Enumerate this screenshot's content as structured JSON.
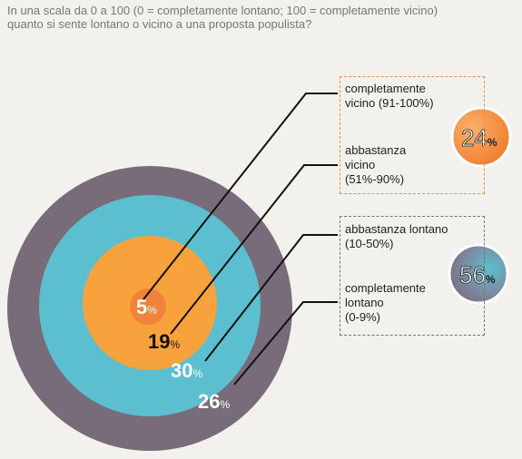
{
  "question": {
    "line1": "In una scala da 0 a 100 (0 = completamente lontano; 100 = completamente vicino)",
    "line2": "quanto si sente lontano o vicino a una proposta populista?"
  },
  "labels": {
    "completamente_vicino": [
      "completamente",
      "vicino (91-100%)"
    ],
    "abbastanza_vicino": [
      "abbastanza",
      "vicino",
      "(51%-90%)"
    ],
    "abbastanza_lontano": [
      "abbastanza lontano",
      "(10-50%)"
    ],
    "completamente_lontano": [
      "completamente",
      "lontano",
      "(0-9%)"
    ]
  },
  "chart_data": {
    "type": "pie",
    "title": "",
    "unit": "%",
    "categories": [
      "completamente vicino (91-100%)",
      "abbastanza vicino (51%-90%)",
      "abbastanza lontano (10-50%)",
      "completamente lontano (0-9%)"
    ],
    "values": [
      5,
      19,
      30,
      26
    ],
    "colors": [
      "#f0823a",
      "#f7a23c",
      "#5bbfcf",
      "#786b7a"
    ],
    "groups": [
      {
        "label": "vicino",
        "value": 24,
        "color": "#f0823a"
      },
      {
        "label": "lontano",
        "value": 56,
        "color": "#786b7a"
      }
    ]
  }
}
